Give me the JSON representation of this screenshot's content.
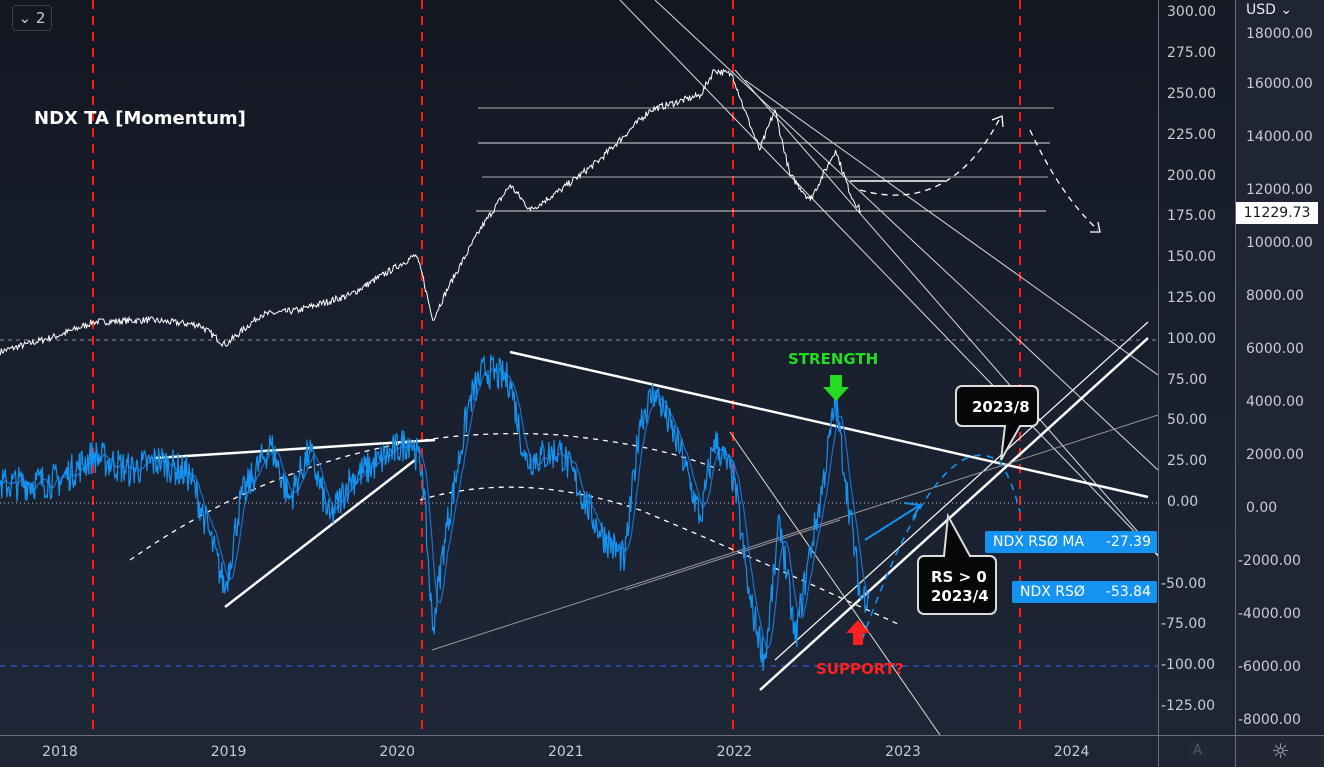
{
  "chart_data": {
    "type": "line",
    "title": "NDX TA [Momentum]",
    "x_ticks": [
      "2018",
      "2019",
      "2020",
      "2021",
      "2022",
      "2023",
      "2024"
    ],
    "left_axis": {
      "ticks": [
        "300.00",
        "275.00",
        "250.00",
        "225.00",
        "200.00",
        "175.00",
        "150.00",
        "125.00",
        "100.00",
        "75.00",
        "50.00",
        "25.00",
        "0.00",
        "-50.00",
        "-75.00",
        "-100.00",
        "-125.00"
      ],
      "ylim": [
        -135,
        305
      ]
    },
    "right_axis": {
      "currency": "USD",
      "ticks": [
        "18000.00",
        "16000.00",
        "14000.00",
        "12000.00",
        "10000.00",
        "8000.00",
        "6000.00",
        "4000.00",
        "2000.00",
        "0.00",
        "-2000.00",
        "-4000.00",
        "-6000.00",
        "-8000.00"
      ],
      "ylim": [
        -8200,
        18400
      ]
    },
    "xlim": [
      2017.64,
      2024.5
    ],
    "series": [
      {
        "name": "NDX",
        "axis": "right",
        "color": "#ffffff",
        "last": "11229.73",
        "points": [
          [
            2017.64,
            5925
          ],
          [
            2018.0,
            6566
          ],
          [
            2018.2,
            7057
          ],
          [
            2018.53,
            7132
          ],
          [
            2018.83,
            6943
          ],
          [
            2018.98,
            6189
          ],
          [
            2019.19,
            7321
          ],
          [
            2019.42,
            7509
          ],
          [
            2019.72,
            8075
          ],
          [
            2020.11,
            9585
          ],
          [
            2020.15,
            8830
          ],
          [
            2020.21,
            7132
          ],
          [
            2020.31,
            8453
          ],
          [
            2020.49,
            10528
          ],
          [
            2020.67,
            12226
          ],
          [
            2020.79,
            11283
          ],
          [
            2020.97,
            12038
          ],
          [
            2021.2,
            13170
          ],
          [
            2021.5,
            15057
          ],
          [
            2021.8,
            15623
          ],
          [
            2021.88,
            16566
          ],
          [
            2021.99,
            16377
          ],
          [
            2022.06,
            15057
          ],
          [
            2022.15,
            13547
          ],
          [
            2022.24,
            15057
          ],
          [
            2022.33,
            12604
          ],
          [
            2022.45,
            11660
          ],
          [
            2022.6,
            13547
          ],
          [
            2022.69,
            11849
          ],
          [
            2022.75,
            11229.73
          ]
        ]
      },
      {
        "name": "NDX RSØ",
        "axis": "left",
        "color": "#1593f0",
        "last": "-53.84",
        "points": [
          [
            2017.64,
            11
          ],
          [
            2018.0,
            14
          ],
          [
            2018.2,
            29
          ],
          [
            2018.42,
            20
          ],
          [
            2018.59,
            26
          ],
          [
            2018.77,
            17
          ],
          [
            2018.86,
            -10
          ],
          [
            2018.98,
            -53
          ],
          [
            2019.07,
            2
          ],
          [
            2019.25,
            36
          ],
          [
            2019.36,
            2
          ],
          [
            2019.48,
            32
          ],
          [
            2019.6,
            -10
          ],
          [
            2019.72,
            14
          ],
          [
            2019.9,
            26
          ],
          [
            2020.08,
            39
          ],
          [
            2020.15,
            20
          ],
          [
            2020.21,
            -78
          ],
          [
            2020.28,
            -23
          ],
          [
            2020.43,
            63
          ],
          [
            2020.52,
            82
          ],
          [
            2020.67,
            75
          ],
          [
            2020.76,
            26
          ],
          [
            2020.97,
            32
          ],
          [
            2021.2,
            -17
          ],
          [
            2021.35,
            -35
          ],
          [
            2021.44,
            51
          ],
          [
            2021.53,
            69
          ],
          [
            2021.68,
            32
          ],
          [
            2021.8,
            -10
          ],
          [
            2021.88,
            39
          ],
          [
            2022.0,
            14
          ],
          [
            2022.09,
            -59
          ],
          [
            2022.18,
            -96
          ],
          [
            2022.27,
            -10
          ],
          [
            2022.36,
            -84
          ],
          [
            2022.45,
            -29
          ],
          [
            2022.51,
            2
          ],
          [
            2022.6,
            63
          ],
          [
            2022.66,
            14
          ],
          [
            2022.75,
            -59
          ],
          [
            2022.8,
            -53.84
          ]
        ]
      },
      {
        "name": "NDX RSØ MA",
        "axis": "left",
        "color": "#1593f0",
        "last": "-27.39"
      }
    ],
    "annotations": {
      "strength": "STRENGTH",
      "support": "SUPPORT?",
      "callout_top": "2023/8",
      "callout_bottom_1": "RS > 0",
      "callout_bottom_2": "2023/4"
    },
    "event_lines_color": "#ff1a1a"
  },
  "toolbar": {
    "collapse_count": "2"
  },
  "axis": {
    "auto_label": "A"
  },
  "colors": {
    "background": "#131722",
    "rs": "#1593f0",
    "strength": "#22dd22",
    "support": "#ff2020"
  }
}
